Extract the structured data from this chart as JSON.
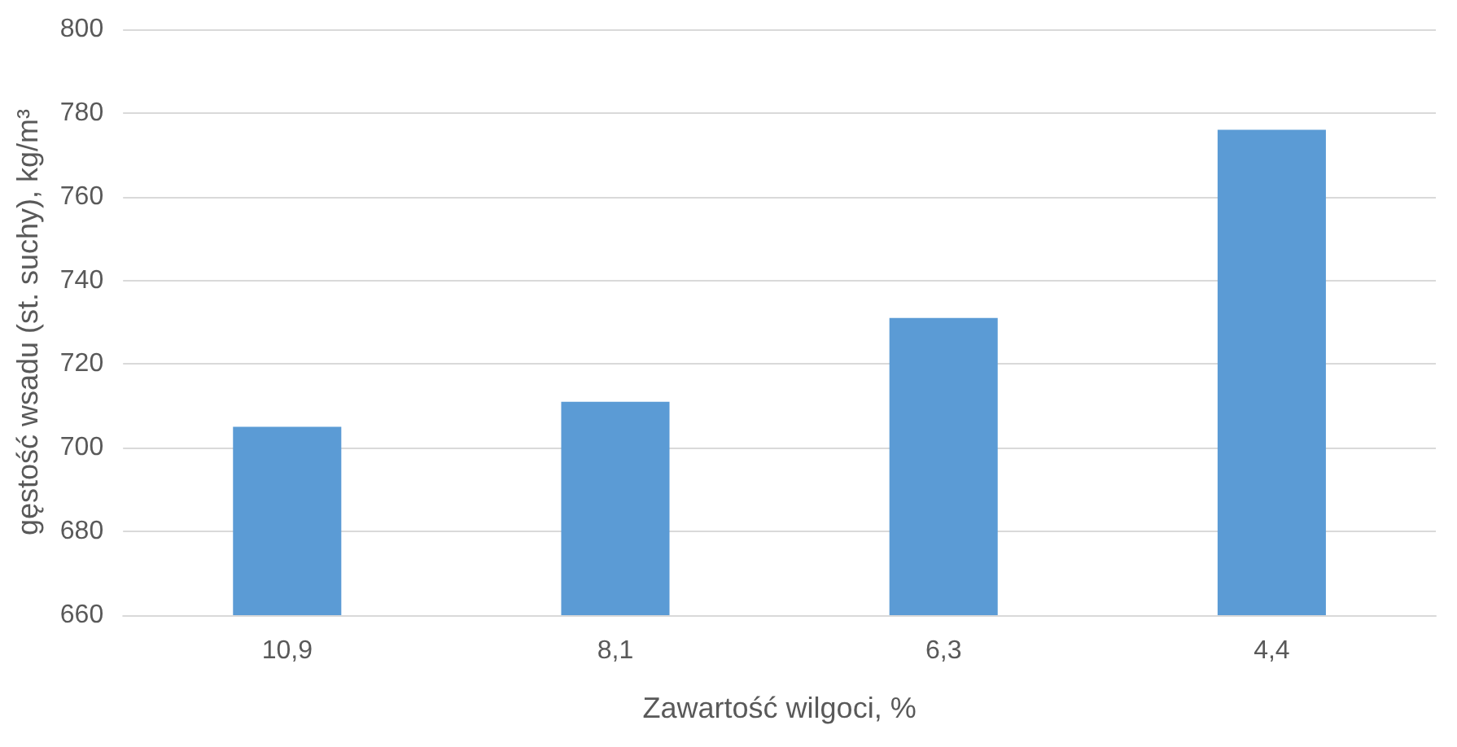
{
  "chart_data": {
    "type": "bar",
    "xlabel": "Zawartość wilgoci, %",
    "ylabel": "gęstość wsadu (st. suchy), kg/m³",
    "categories": [
      "10,9",
      "8,1",
      "6,3",
      "4,4"
    ],
    "values": [
      705,
      711,
      731,
      776
    ],
    "color": "#5b9bd5",
    "ylim": [
      660,
      800
    ],
    "yticks": [
      660,
      680,
      700,
      720,
      740,
      760,
      780,
      800
    ],
    "grid": "y"
  }
}
